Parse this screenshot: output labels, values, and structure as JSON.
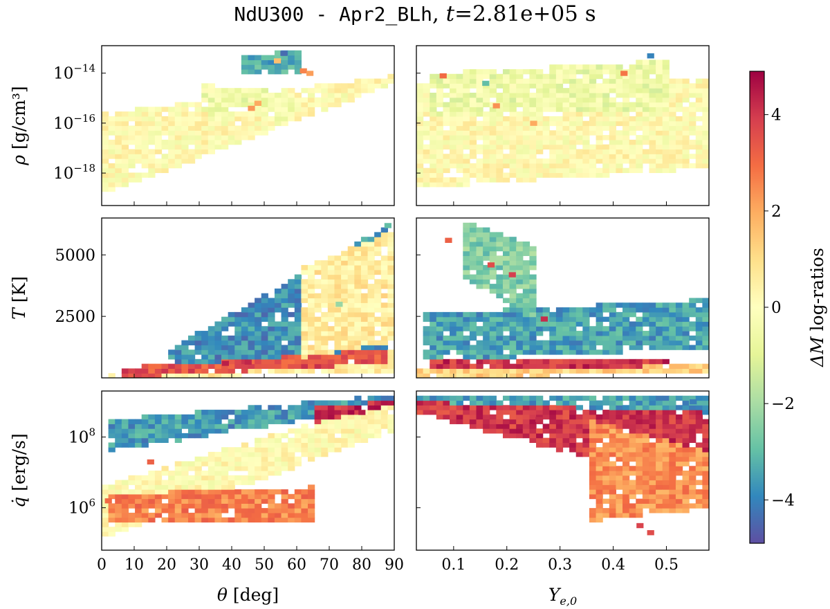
{
  "title": {
    "model": "NdU300",
    "sep": " - ",
    "run": "Apr2_BLh",
    "comma": ",",
    "time_symbol": "t",
    "time_value": "=2.81e+05 s"
  },
  "chart_data": {
    "type": "heatmap",
    "columns": [
      {
        "xlabel": "θ [deg]",
        "xlim": [
          0,
          90
        ],
        "xticks": [
          0,
          10,
          20,
          30,
          40,
          50,
          60,
          70,
          80,
          90
        ]
      },
      {
        "xlabel": "Y_e,0",
        "xlim": [
          0.03,
          0.58
        ],
        "xticks": [
          0.1,
          0.2,
          0.3,
          0.4,
          0.5
        ]
      }
    ],
    "rows": [
      {
        "ylabel": "ρ [g/cm³]",
        "yscale": "log",
        "ylim": [
          -19.3,
          -12.9
        ],
        "yticks": [
          {
            "value": -14,
            "label": "10^-14"
          },
          {
            "value": -16,
            "label": "10^-16"
          },
          {
            "value": -18,
            "label": "10^-18"
          }
        ]
      },
      {
        "ylabel": "T [K]",
        "yscale": "linear",
        "ylim": [
          0,
          6500
        ],
        "yticks": [
          {
            "value": 5000,
            "label": "5000"
          },
          {
            "value": 2500,
            "label": "2500"
          }
        ]
      },
      {
        "ylabel": "q̇ [erg/s]",
        "yscale": "log",
        "ylim": [
          4.8,
          9.3
        ],
        "yticks": [
          {
            "value": 8,
            "label": "10^8"
          },
          {
            "value": 6,
            "label": "10^6"
          }
        ]
      }
    ],
    "colorbar": {
      "label": "ΔM log-ratios",
      "range": [
        -4.9,
        4.9
      ],
      "ticks": [
        4,
        2,
        0,
        -2,
        -4
      ],
      "tick_labels": [
        "4",
        "2",
        "0",
        "−2",
        "−4"
      ],
      "colormap": "Spectral_r"
    },
    "panels": [
      {
        "row": 0,
        "col": 0,
        "regions": [
          {
            "x": [
              0,
              90
            ],
            "lower": [
              -18.9,
              -14.4
            ],
            "upper": [
              -15.6,
              -14.1
            ],
            "value": 0.1
          },
          {
            "x": [
              30,
              60
            ],
            "lower": [
              -15.6,
              -15.9
            ],
            "upper": [
              -14.4,
              -14.8
            ],
            "value": -0.5
          },
          {
            "x": [
              43,
              62
            ],
            "lower": [
              -14.1,
              -14.0
            ],
            "upper": [
              -13.3,
              -13.1
            ],
            "value": -3.3
          }
        ],
        "cells": [
          {
            "x": 46,
            "y": -15.4,
            "v": 2.3
          },
          {
            "x": 48,
            "y": -15.2,
            "v": 2.0
          },
          {
            "x": 62,
            "y": -13.9,
            "v": 2.6
          },
          {
            "x": 64,
            "y": -14.0,
            "v": 2.2
          },
          {
            "x": 56,
            "y": -13.2,
            "v": -4.4
          },
          {
            "x": 54,
            "y": -13.5,
            "v": 1.6
          }
        ]
      },
      {
        "row": 0,
        "col": 1,
        "regions": [
          {
            "x": [
              0.03,
              0.58
            ],
            "lower": [
              -18.6,
              -17.8
            ],
            "upper": [
              -14.4,
              -14.2
            ],
            "value": 0.1
          },
          {
            "x": [
              0.06,
              0.5
            ],
            "lower": [
              -15.8,
              -15.5
            ],
            "upper": [
              -14.0,
              -13.5
            ],
            "value": -0.6
          }
        ],
        "cells": [
          {
            "x": 0.08,
            "y": -14.1,
            "v": 3.0
          },
          {
            "x": 0.42,
            "y": -14.0,
            "v": 2.8
          },
          {
            "x": 0.47,
            "y": -13.3,
            "v": -4.0
          },
          {
            "x": 0.18,
            "y": -15.3,
            "v": 2.4
          },
          {
            "x": 0.16,
            "y": -14.4,
            "v": -3.0
          },
          {
            "x": 0.25,
            "y": -16.0,
            "v": 2.0
          }
        ]
      },
      {
        "row": 1,
        "col": 0,
        "regions": [
          {
            "x": [
              0,
              90
            ],
            "lower": [
              0,
              200
            ],
            "upper": [
              150,
              1100
            ],
            "value": 0.5
          },
          {
            "x": [
              5,
              88
            ],
            "lower": [
              0,
              600
            ],
            "upper": [
              400,
              1300
            ],
            "value": 3.5
          },
          {
            "x": [
              20,
              88
            ],
            "lower": [
              500,
              1200
            ],
            "upper": [
              1100,
              6200
            ],
            "value": -3.8
          },
          {
            "x": [
              62,
              90
            ],
            "lower": [
              800,
              1500
            ],
            "upper": [
              4500,
              6000
            ],
            "value": 0.6
          }
        ],
        "cells": [
          {
            "x": 38,
            "y": 600,
            "v": 4.4
          },
          {
            "x": 45,
            "y": 650,
            "v": 4.3
          },
          {
            "x": 73,
            "y": 3000,
            "v": -2.2
          },
          {
            "x": 88,
            "y": 6200,
            "v": -3.0
          }
        ]
      },
      {
        "row": 1,
        "col": 1,
        "regions": [
          {
            "x": [
              0.03,
              0.58
            ],
            "lower": [
              0,
              200
            ],
            "upper": [
              300,
              600
            ],
            "value": 1.2
          },
          {
            "x": [
              0.05,
              0.5
            ],
            "lower": [
              300,
              500
            ],
            "upper": [
              700,
              800
            ],
            "value": 4.0
          },
          {
            "x": [
              0.04,
              0.58
            ],
            "lower": [
              700,
              1200
            ],
            "upper": [
              2600,
              3200
            ],
            "value": -3.5
          },
          {
            "x": [
              0.12,
              0.25
            ],
            "lower": [
              4000,
              2500
            ],
            "upper": [
              6400,
              5400
            ],
            "value": -2.5
          }
        ],
        "cells": [
          {
            "x": 0.17,
            "y": 4600,
            "v": 3.6
          },
          {
            "x": 0.21,
            "y": 4200,
            "v": 3.9
          },
          {
            "x": 0.27,
            "y": 2400,
            "v": 4.2
          },
          {
            "x": 0.09,
            "y": 5600,
            "v": 3.2
          }
        ]
      },
      {
        "row": 2,
        "col": 0,
        "regions": [
          {
            "x": [
              0,
              90
            ],
            "lower": [
              5.1,
              8.2
            ],
            "upper": [
              6.6,
              9.1
            ],
            "value": 0.1
          },
          {
            "x": [
              3,
              65
            ],
            "lower": [
              5.6,
              5.6
            ],
            "upper": [
              6.4,
              6.6
            ],
            "value": 2.6
          },
          {
            "x": [
              3,
              90
            ],
            "lower": [
              7.6,
              8.9
            ],
            "upper": [
              8.5,
              9.2
            ],
            "value": -3.6
          },
          {
            "x": [
              65,
              90
            ],
            "lower": [
              8.4,
              8.9
            ],
            "upper": [
              8.9,
              9.0
            ],
            "value": 4.2
          }
        ],
        "cells": [
          {
            "x": 2,
            "y": 6.2,
            "v": 3.0
          },
          {
            "x": 15,
            "y": 7.3,
            "v": 3.2
          },
          {
            "x": 45,
            "y": 5.8,
            "v": 3.1
          },
          {
            "x": 80,
            "y": 8.7,
            "v": 4.5
          }
        ]
      },
      {
        "row": 2,
        "col": 1,
        "regions": [
          {
            "x": [
              0.03,
              0.58
            ],
            "lower": [
              8.7,
              6.5
            ],
            "upper": [
              9.1,
              9.0
            ],
            "value": 4.0
          },
          {
            "x": [
              0.03,
              0.58
            ],
            "lower": [
              9.0,
              8.7
            ],
            "upper": [
              9.2,
              9.2
            ],
            "value": -3.5
          },
          {
            "x": [
              0.35,
              0.58
            ],
            "lower": [
              5.6,
              6.0
            ],
            "upper": [
              8.5,
              7.6
            ],
            "value": 2.4
          }
        ],
        "cells": [
          {
            "x": 0.45,
            "y": 5.5,
            "v": 3.8
          },
          {
            "x": 0.47,
            "y": 5.3,
            "v": 3.6
          },
          {
            "x": 0.55,
            "y": 9.0,
            "v": -4.1
          },
          {
            "x": 0.26,
            "y": 8.5,
            "v": 4.2
          }
        ]
      }
    ]
  }
}
